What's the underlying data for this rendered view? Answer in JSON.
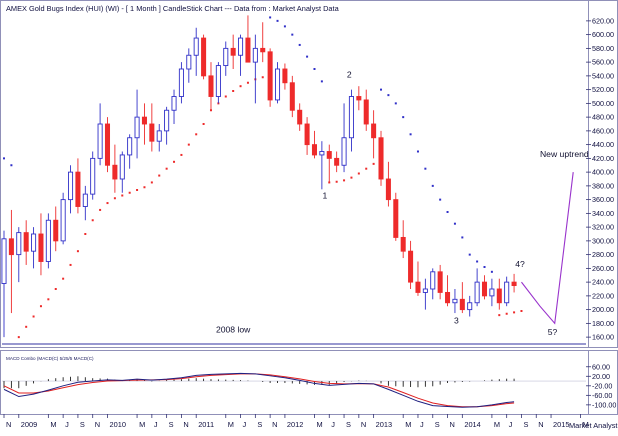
{
  "header": {
    "title": "AMEX Gold Bugs Index (HUI) (WI) -  [ 1 Month ] CandleStick Chart --- Data from : Market Analyst Data"
  },
  "footer": {
    "credit": "Market Analyst 6"
  },
  "macd": {
    "label": "MACD Combo (MACD(C) 5/25/5 MACD(C)",
    "ticks": [
      "60.00",
      "20.00",
      "-20.00",
      "-60.00",
      "-100.00"
    ]
  },
  "x_axis": {
    "labels": [
      {
        "t": 0,
        "text": "N"
      },
      {
        "t": 2,
        "text": "2009"
      },
      {
        "t": 6,
        "text": "M"
      },
      {
        "t": 8,
        "text": "J"
      },
      {
        "t": 10,
        "text": "S"
      },
      {
        "t": 12,
        "text": "N"
      },
      {
        "t": 14,
        "text": "2010"
      },
      {
        "t": 18,
        "text": "M"
      },
      {
        "t": 20,
        "text": "J"
      },
      {
        "t": 22,
        "text": "S"
      },
      {
        "t": 24,
        "text": "N"
      },
      {
        "t": 26,
        "text": "2011"
      },
      {
        "t": 30,
        "text": "M"
      },
      {
        "t": 32,
        "text": "J"
      },
      {
        "t": 34,
        "text": "S"
      },
      {
        "t": 36,
        "text": "N"
      },
      {
        "t": 38,
        "text": "2012"
      },
      {
        "t": 42,
        "text": "M"
      },
      {
        "t": 44,
        "text": "J"
      },
      {
        "t": 46,
        "text": "S"
      },
      {
        "t": 48,
        "text": "N"
      },
      {
        "t": 50,
        "text": "2013"
      },
      {
        "t": 54,
        "text": "M"
      },
      {
        "t": 56,
        "text": "J"
      },
      {
        "t": 58,
        "text": "S"
      },
      {
        "t": 60,
        "text": "N"
      },
      {
        "t": 62,
        "text": "2014"
      },
      {
        "t": 66,
        "text": "M"
      },
      {
        "t": 68,
        "text": "J"
      },
      {
        "t": 70,
        "text": "S"
      },
      {
        "t": 72,
        "text": "N"
      },
      {
        "t": 74,
        "text": "2015"
      },
      {
        "t": 78,
        "text": "M"
      }
    ]
  },
  "chart_data": {
    "type": "candlestick",
    "title": "AMEX Gold Bugs Index (HUI) (WI) -  [ 1 Month ] CandleStick Chart --- Data from : Market Analyst Data",
    "ylim": [
      150,
      630
    ],
    "yticks": [
      160,
      180,
      200,
      220,
      240,
      260,
      280,
      300,
      320,
      340,
      360,
      380,
      400,
      420,
      440,
      460,
      480,
      500,
      520,
      540,
      560,
      580,
      600,
      620
    ],
    "t_range": [
      0,
      79
    ],
    "x_start": "Nov 2008",
    "colors": {
      "up": "#3030c8",
      "down": "#ee2b2b",
      "sar": "#ee2b2b",
      "sar_above": "#3030c8",
      "projection": "#9933cc"
    },
    "candles": [
      [
        0,
        238,
        315,
        160,
        303
      ],
      [
        1,
        303,
        345,
        195,
        280
      ],
      [
        2,
        280,
        320,
        240,
        312
      ],
      [
        3,
        312,
        330,
        265,
        285
      ],
      [
        4,
        285,
        320,
        260,
        310
      ],
      [
        5,
        310,
        340,
        250,
        270
      ],
      [
        6,
        270,
        340,
        260,
        330
      ],
      [
        7,
        330,
        350,
        285,
        300
      ],
      [
        8,
        300,
        370,
        295,
        360
      ],
      [
        9,
        360,
        410,
        340,
        400
      ],
      [
        10,
        400,
        420,
        340,
        350
      ],
      [
        11,
        350,
        380,
        330,
        368
      ],
      [
        12,
        368,
        430,
        360,
        420
      ],
      [
        13,
        420,
        500,
        410,
        470
      ],
      [
        14,
        470,
        480,
        400,
        410
      ],
      [
        15,
        410,
        440,
        370,
        390
      ],
      [
        16,
        390,
        430,
        370,
        425
      ],
      [
        17,
        425,
        455,
        405,
        450
      ],
      [
        18,
        450,
        520,
        420,
        480
      ],
      [
        19,
        480,
        500,
        440,
        470
      ],
      [
        20,
        470,
        500,
        430,
        445
      ],
      [
        21,
        445,
        470,
        430,
        460
      ],
      [
        22,
        460,
        495,
        440,
        490
      ],
      [
        23,
        490,
        520,
        470,
        510
      ],
      [
        24,
        510,
        560,
        500,
        550
      ],
      [
        25,
        550,
        580,
        530,
        570
      ],
      [
        26,
        570,
        610,
        540,
        595
      ],
      [
        27,
        595,
        600,
        535,
        540
      ],
      [
        28,
        540,
        560,
        490,
        510
      ],
      [
        29,
        510,
        560,
        500,
        555
      ],
      [
        30,
        555,
        590,
        540,
        580
      ],
      [
        31,
        580,
        600,
        550,
        570
      ],
      [
        32,
        570,
        600,
        540,
        595
      ],
      [
        33,
        595,
        628,
        560,
        560
      ],
      [
        34,
        560,
        600,
        500,
        580
      ],
      [
        35,
        580,
        618,
        560,
        575
      ],
      [
        36,
        575,
        580,
        495,
        505
      ],
      [
        37,
        505,
        560,
        500,
        550
      ],
      [
        38,
        550,
        558,
        520,
        530
      ],
      [
        39,
        530,
        540,
        480,
        490
      ],
      [
        40,
        490,
        500,
        460,
        470
      ],
      [
        41,
        470,
        480,
        425,
        440
      ],
      [
        42,
        440,
        460,
        420,
        425
      ],
      [
        43,
        425,
        445,
        375,
        430
      ],
      [
        44,
        430,
        440,
        385,
        420
      ],
      [
        45,
        420,
        430,
        400,
        410
      ],
      [
        46,
        410,
        500,
        400,
        450
      ],
      [
        47,
        450,
        520,
        430,
        510
      ],
      [
        48,
        510,
        525,
        490,
        505
      ],
      [
        49,
        505,
        520,
        460,
        470
      ],
      [
        50,
        470,
        490,
        420,
        450
      ],
      [
        51,
        450,
        460,
        380,
        390
      ],
      [
        52,
        390,
        415,
        350,
        360
      ],
      [
        53,
        360,
        370,
        300,
        305
      ],
      [
        54,
        305,
        330,
        275,
        285
      ],
      [
        55,
        285,
        300,
        230,
        240
      ],
      [
        56,
        240,
        270,
        220,
        225
      ],
      [
        57,
        225,
        245,
        200,
        230
      ],
      [
        58,
        230,
        260,
        215,
        255
      ],
      [
        59,
        255,
        265,
        215,
        225
      ],
      [
        60,
        225,
        250,
        205,
        210
      ],
      [
        61,
        210,
        230,
        195,
        215
      ],
      [
        62,
        215,
        240,
        195,
        200
      ],
      [
        63,
        200,
        220,
        190,
        210
      ],
      [
        64,
        210,
        260,
        205,
        240
      ],
      [
        65,
        240,
        250,
        215,
        220
      ],
      [
        66,
        220,
        245,
        205,
        230
      ],
      [
        67,
        230,
        245,
        200,
        210
      ],
      [
        68,
        210,
        248,
        205,
        240
      ],
      [
        69,
        240,
        252,
        225,
        235
      ]
    ],
    "sar": [
      [
        0,
        420
      ],
      [
        1,
        410
      ],
      [
        2,
        160
      ],
      [
        3,
        175
      ],
      [
        4,
        190
      ],
      [
        5,
        205
      ],
      [
        6,
        215
      ],
      [
        7,
        230
      ],
      [
        8,
        245
      ],
      [
        9,
        265
      ],
      [
        10,
        285
      ],
      [
        11,
        310
      ],
      [
        12,
        330
      ],
      [
        13,
        345
      ],
      [
        14,
        355
      ],
      [
        15,
        362
      ],
      [
        16,
        366
      ],
      [
        17,
        370
      ],
      [
        18,
        374
      ],
      [
        19,
        378
      ],
      [
        20,
        385
      ],
      [
        21,
        395
      ],
      [
        22,
        405
      ],
      [
        23,
        415
      ],
      [
        24,
        425
      ],
      [
        25,
        440
      ],
      [
        26,
        455
      ],
      [
        27,
        470
      ],
      [
        28,
        490
      ],
      [
        29,
        500
      ],
      [
        30,
        510
      ],
      [
        31,
        518
      ],
      [
        32,
        525
      ],
      [
        33,
        530
      ],
      [
        34,
        535
      ],
      [
        35,
        538
      ],
      [
        36,
        625
      ],
      [
        37,
        620
      ],
      [
        38,
        612
      ],
      [
        39,
        600
      ],
      [
        40,
        585
      ],
      [
        41,
        568
      ],
      [
        42,
        550
      ],
      [
        43,
        532
      ],
      [
        44,
        385
      ],
      [
        45,
        386
      ],
      [
        46,
        388
      ],
      [
        47,
        392
      ],
      [
        48,
        398
      ],
      [
        49,
        405
      ],
      [
        50,
        412
      ],
      [
        51,
        520
      ],
      [
        52,
        512
      ],
      [
        53,
        500
      ],
      [
        54,
        480
      ],
      [
        55,
        455
      ],
      [
        56,
        430
      ],
      [
        57,
        405
      ],
      [
        58,
        380
      ],
      [
        59,
        360
      ],
      [
        60,
        342
      ],
      [
        61,
        325
      ],
      [
        62,
        305
      ],
      [
        63,
        280
      ],
      [
        64,
        270
      ],
      [
        65,
        262
      ],
      [
        66,
        255
      ],
      [
        67,
        192
      ],
      [
        68,
        194
      ],
      [
        69,
        196
      ],
      [
        70,
        198
      ]
    ],
    "annotations": [
      {
        "t": 31.0,
        "v": 167,
        "text": "2008 low",
        "align": "middle"
      },
      {
        "t": 43.4,
        "v": 362,
        "text": "1",
        "align": "middle"
      },
      {
        "t": 46.7,
        "v": 538,
        "text": "2",
        "align": "middle"
      },
      {
        "t": 61.2,
        "v": 180,
        "text": "3",
        "align": "middle"
      },
      {
        "t": 69.8,
        "v": 262,
        "text": "4?",
        "align": "middle"
      },
      {
        "t": 74.2,
        "v": 163,
        "text": "5?",
        "align": "middle"
      },
      {
        "t": 75.8,
        "v": 422,
        "text": "New uptrend",
        "align": "middle"
      }
    ],
    "projection": [
      [
        70,
        240
      ],
      [
        72.5,
        205
      ],
      [
        74.5,
        180
      ],
      [
        77,
        400
      ]
    ],
    "low_line": 150,
    "macd": {
      "ylim": [
        -130,
        80
      ],
      "macd_line": [
        [
          0,
          -35
        ],
        [
          2,
          -65
        ],
        [
          4,
          -55
        ],
        [
          6,
          -38
        ],
        [
          8,
          -20
        ],
        [
          10,
          -5
        ],
        [
          12,
          0
        ],
        [
          14,
          5
        ],
        [
          16,
          3
        ],
        [
          18,
          8
        ],
        [
          20,
          4
        ],
        [
          22,
          8
        ],
        [
          24,
          14
        ],
        [
          26,
          24
        ],
        [
          28,
          28
        ],
        [
          30,
          30
        ],
        [
          32,
          32
        ],
        [
          34,
          30
        ],
        [
          36,
          22
        ],
        [
          38,
          14
        ],
        [
          40,
          3
        ],
        [
          42,
          -10
        ],
        [
          44,
          -18
        ],
        [
          46,
          -14
        ],
        [
          48,
          -10
        ],
        [
          50,
          -12
        ],
        [
          52,
          -35
        ],
        [
          54,
          -60
        ],
        [
          56,
          -85
        ],
        [
          58,
          -103
        ],
        [
          60,
          -107
        ],
        [
          62,
          -110
        ],
        [
          64,
          -108
        ],
        [
          66,
          -100
        ],
        [
          68,
          -90
        ],
        [
          69,
          -87
        ]
      ],
      "signal_line": [
        [
          0,
          -20
        ],
        [
          2,
          -50
        ],
        [
          4,
          -50
        ],
        [
          6,
          -42
        ],
        [
          8,
          -28
        ],
        [
          10,
          -15
        ],
        [
          12,
          -6
        ],
        [
          14,
          0
        ],
        [
          16,
          2
        ],
        [
          18,
          4
        ],
        [
          20,
          5
        ],
        [
          22,
          6
        ],
        [
          24,
          10
        ],
        [
          26,
          18
        ],
        [
          28,
          24
        ],
        [
          30,
          27
        ],
        [
          32,
          30
        ],
        [
          34,
          30
        ],
        [
          36,
          26
        ],
        [
          38,
          18
        ],
        [
          40,
          9
        ],
        [
          42,
          -2
        ],
        [
          44,
          -10
        ],
        [
          46,
          -12
        ],
        [
          48,
          -11
        ],
        [
          50,
          -12
        ],
        [
          52,
          -25
        ],
        [
          54,
          -48
        ],
        [
          56,
          -72
        ],
        [
          58,
          -92
        ],
        [
          60,
          -103
        ],
        [
          62,
          -108
        ],
        [
          64,
          -108
        ],
        [
          66,
          -103
        ],
        [
          68,
          -95
        ],
        [
          69,
          -92
        ]
      ]
    }
  }
}
